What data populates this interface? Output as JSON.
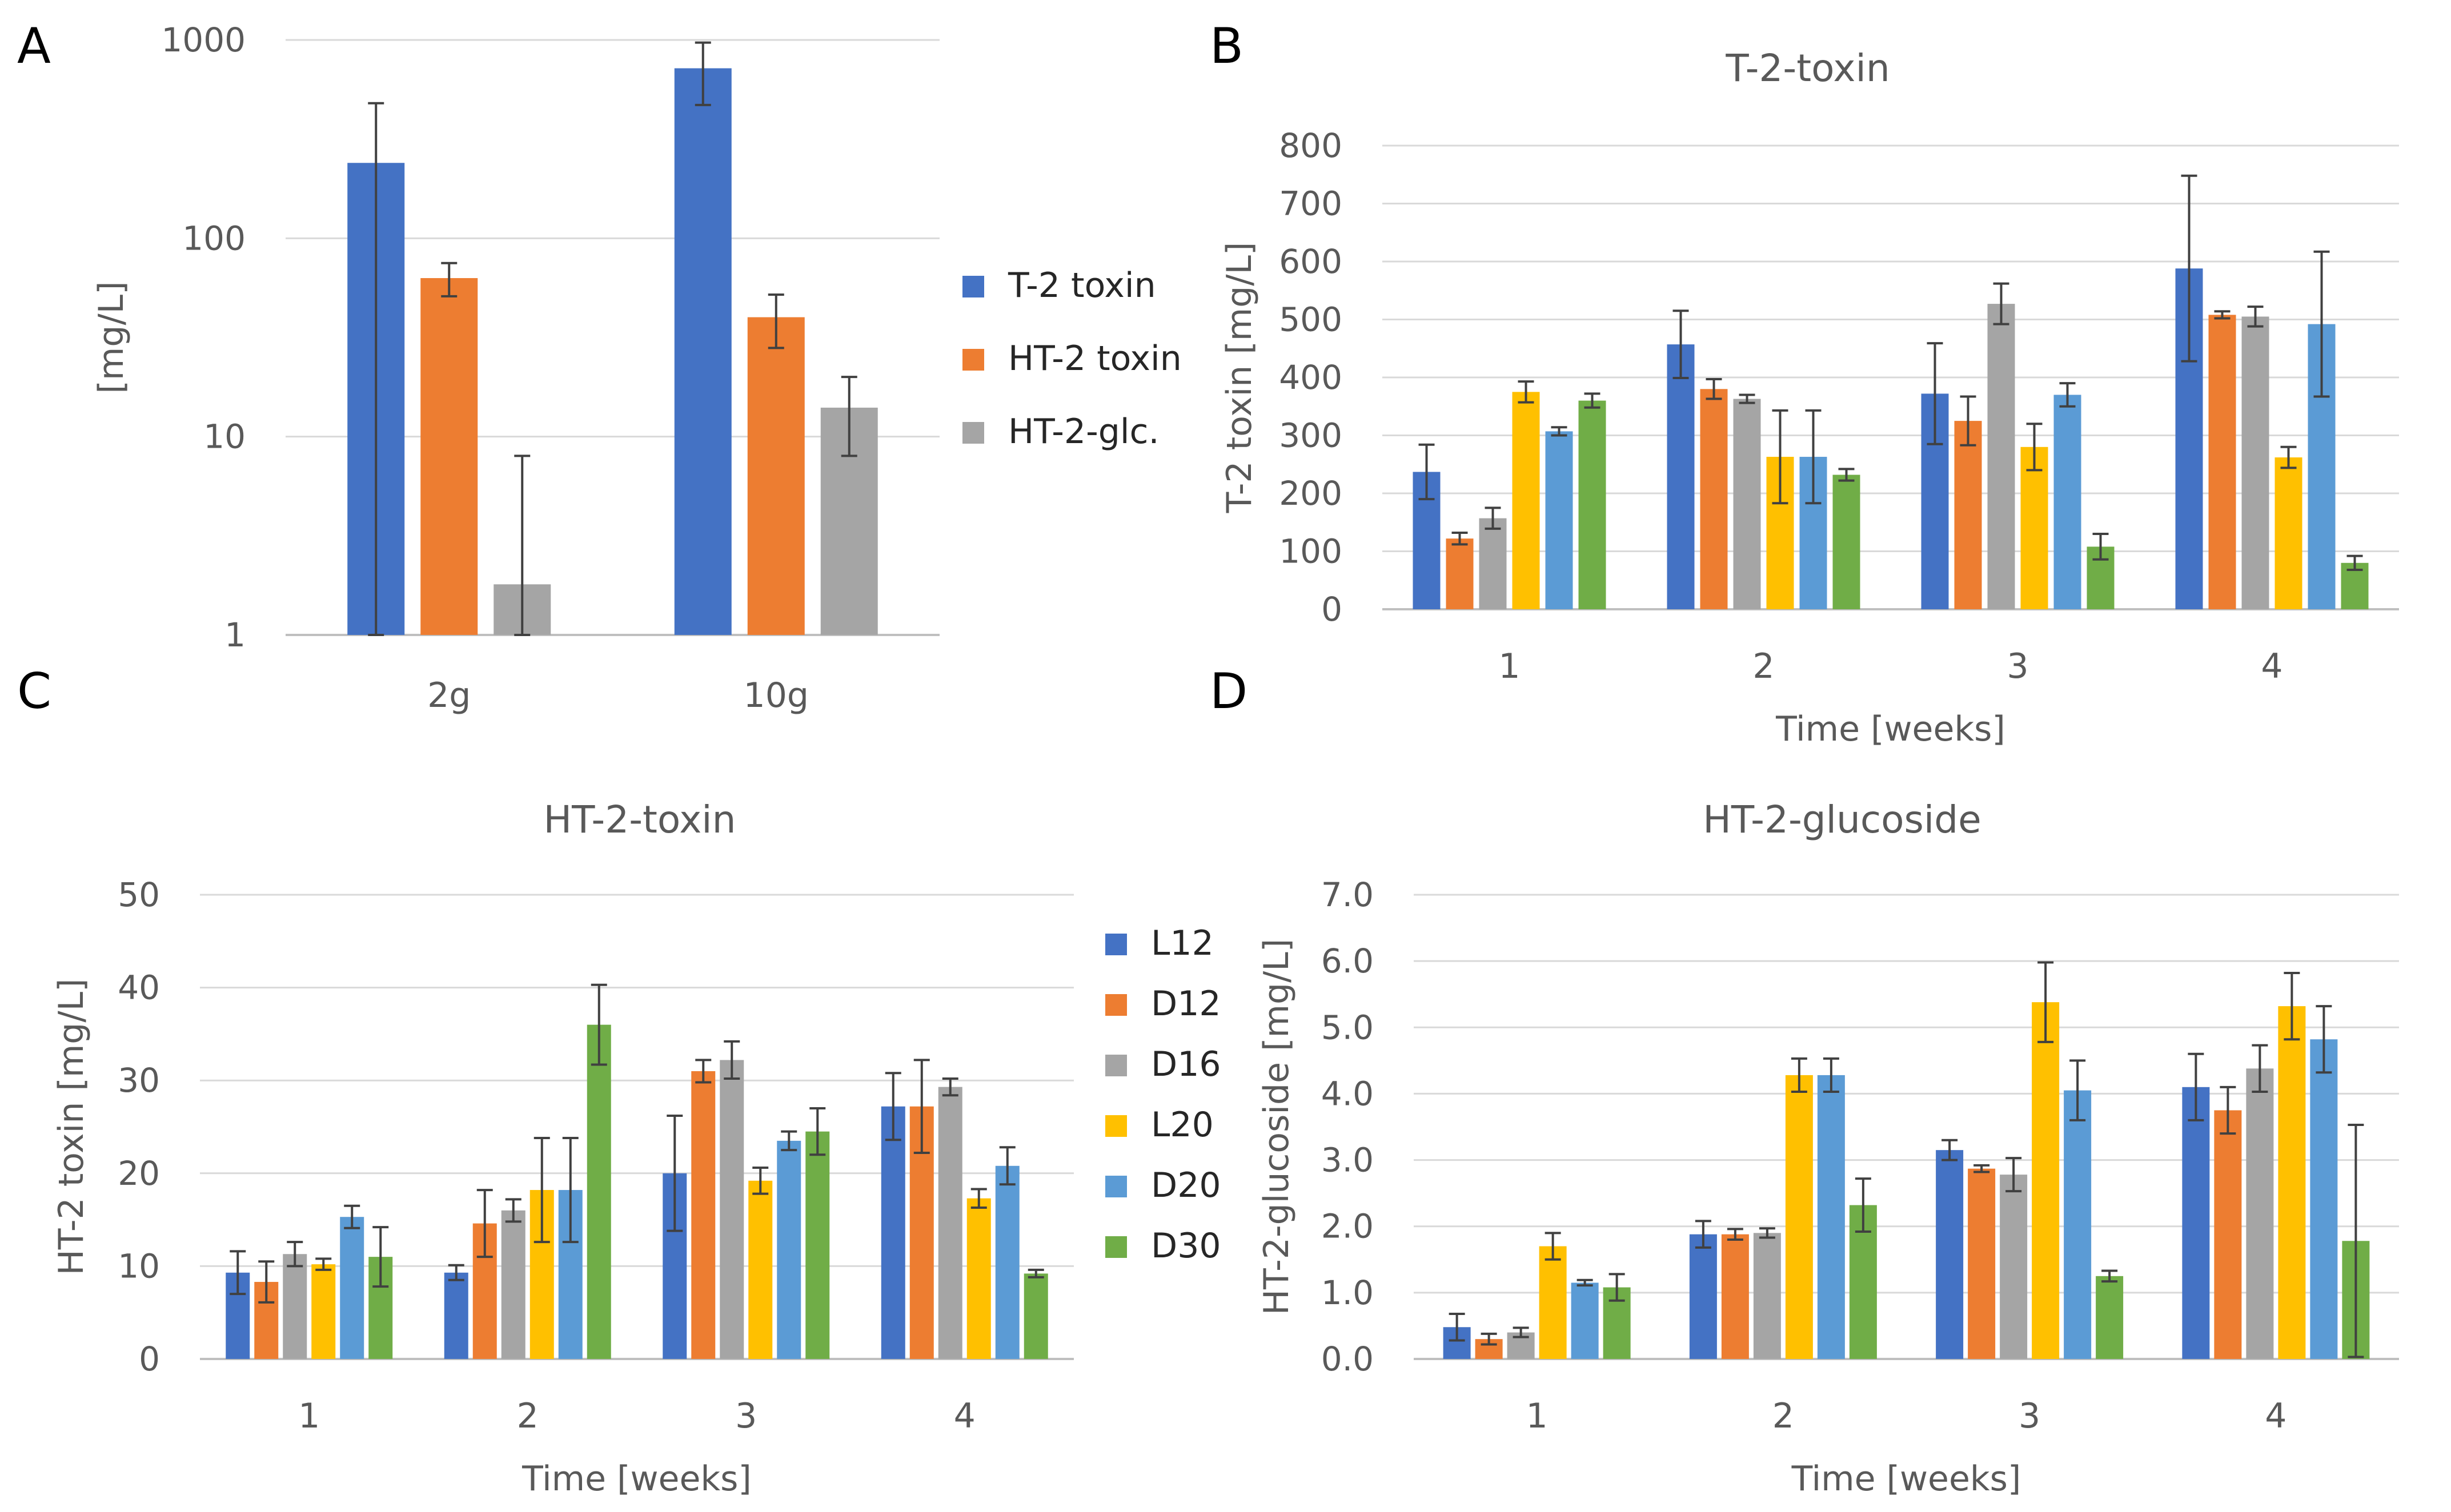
{
  "colors": {
    "L12": "#4472C4",
    "D12": "#ED7D31",
    "D16": "#A5A5A5",
    "L20": "#FFC000",
    "D20": "#5B9BD5",
    "D30": "#70AD47",
    "grid": "#d9d9d9",
    "axis": "#bfbfbf",
    "text": "#595959",
    "panel_label": "#000000",
    "error": "#404040"
  },
  "chart_data": [
    {
      "panel": "A",
      "type": "bar",
      "title": "",
      "xlabel": "",
      "ylabel": "[mg/L]",
      "yscale": "log",
      "ylim": [
        1,
        1000
      ],
      "yticks": [
        1,
        10,
        100,
        1000
      ],
      "ytick_labels": [
        "1",
        "10",
        "100",
        "1000"
      ],
      "categories": [
        "2g",
        "10g"
      ],
      "series": [
        {
          "name": "T-2 toxin",
          "color": "#4472C4",
          "values": [
            240,
            720
          ],
          "errors": [
            240,
            250
          ]
        },
        {
          "name": "HT-2 toxin",
          "color": "#ED7D31",
          "values": [
            63,
            40
          ],
          "errors": [
            12,
            12
          ]
        },
        {
          "name": "HT-2-glc.",
          "color": "#A5A5A5",
          "values": [
            1.8,
            14
          ],
          "errors": [
            6.2,
            6
          ]
        }
      ],
      "legend": "right"
    },
    {
      "panel": "B",
      "type": "bar",
      "title": "T-2-toxin",
      "xlabel": "Time [weeks]",
      "ylabel": "T-2 toxin [mg/L]",
      "ylim": [
        0,
        800
      ],
      "yticks": [
        0,
        100,
        200,
        300,
        400,
        500,
        600,
        700,
        800
      ],
      "ytick_labels": [
        "0",
        "100",
        "200",
        "300",
        "400",
        "500",
        "600",
        "700",
        "800"
      ],
      "categories": [
        "1",
        "2",
        "3",
        "4"
      ],
      "series": [
        {
          "name": "L12",
          "color": "#4472C4",
          "values": [
            237,
            457,
            372,
            588
          ],
          "errors": [
            47,
            58,
            87,
            160
          ]
        },
        {
          "name": "D12",
          "color": "#ED7D31",
          "values": [
            122,
            380,
            325,
            508
          ],
          "errors": [
            10,
            17,
            42,
            6
          ]
        },
        {
          "name": "D16",
          "color": "#A5A5A5",
          "values": [
            157,
            363,
            527,
            505
          ],
          "errors": [
            18,
            7,
            35,
            17
          ]
        },
        {
          "name": "L20",
          "color": "#FFC000",
          "values": [
            375,
            263,
            280,
            262
          ],
          "errors": [
            18,
            80,
            40,
            18
          ]
        },
        {
          "name": "D20",
          "color": "#5B9BD5",
          "values": [
            307,
            263,
            370,
            492
          ],
          "errors": [
            7,
            80,
            20,
            125
          ]
        },
        {
          "name": "D30",
          "color": "#70AD47",
          "values": [
            360,
            232,
            108,
            80
          ],
          "errors": [
            12,
            10,
            22,
            12
          ]
        }
      ]
    },
    {
      "panel": "C",
      "type": "bar",
      "title": "HT-2-toxin",
      "xlabel": "Time [weeks]",
      "ylabel": "HT-2 toxin [mg/L]",
      "ylim": [
        0,
        50
      ],
      "yticks": [
        0,
        10,
        20,
        30,
        40,
        50
      ],
      "ytick_labels": [
        "0",
        "10",
        "20",
        "30",
        "40",
        "50"
      ],
      "categories": [
        "1",
        "2",
        "3",
        "4"
      ],
      "series": [
        {
          "name": "L12",
          "color": "#4472C4",
          "values": [
            9.3,
            9.3,
            20,
            27.2
          ],
          "errors": [
            2.3,
            0.8,
            6.2,
            3.6
          ]
        },
        {
          "name": "D12",
          "color": "#ED7D31",
          "values": [
            8.3,
            14.6,
            31,
            27.2
          ],
          "errors": [
            2.2,
            3.6,
            1.2,
            5
          ]
        },
        {
          "name": "D16",
          "color": "#A5A5A5",
          "values": [
            11.3,
            16,
            32.2,
            29.3
          ],
          "errors": [
            1.3,
            1.2,
            2,
            0.9
          ]
        },
        {
          "name": "L20",
          "color": "#FFC000",
          "values": [
            10.2,
            18.2,
            19.2,
            17.3
          ],
          "errors": [
            0.6,
            5.6,
            1.4,
            1
          ]
        },
        {
          "name": "D20",
          "color": "#5B9BD5",
          "values": [
            15.3,
            18.2,
            23.5,
            20.8
          ],
          "errors": [
            1.2,
            5.6,
            1,
            2
          ]
        },
        {
          "name": "D30",
          "color": "#70AD47",
          "values": [
            11,
            36,
            24.5,
            9.2
          ],
          "errors": [
            3.2,
            4.3,
            2.5,
            0.4
          ]
        }
      ],
      "legend": "right"
    },
    {
      "panel": "D",
      "type": "bar",
      "title": "HT-2-glucoside",
      "xlabel": "Time [weeks]",
      "ylabel": "HT-2-glucoside [mg/L]",
      "ylim": [
        0,
        7
      ],
      "yticks": [
        0,
        1,
        2,
        3,
        4,
        5,
        6,
        7
      ],
      "ytick_labels": [
        "0.0",
        "1.0",
        "2.0",
        "3.0",
        "4.0",
        "5.0",
        "6.0",
        "7.0"
      ],
      "categories": [
        "1",
        "2",
        "3",
        "4"
      ],
      "series": [
        {
          "name": "L12",
          "color": "#4472C4",
          "values": [
            0.48,
            1.88,
            3.15,
            4.1
          ],
          "errors": [
            0.2,
            0.2,
            0.15,
            0.5
          ]
        },
        {
          "name": "D12",
          "color": "#ED7D31",
          "values": [
            0.3,
            1.88,
            2.87,
            3.75
          ],
          "errors": [
            0.08,
            0.08,
            0.05,
            0.35
          ]
        },
        {
          "name": "D16",
          "color": "#A5A5A5",
          "values": [
            0.4,
            1.9,
            2.78,
            4.38
          ],
          "errors": [
            0.07,
            0.07,
            0.25,
            0.35
          ]
        },
        {
          "name": "L20",
          "color": "#FFC000",
          "values": [
            1.7,
            4.28,
            5.38,
            5.32
          ],
          "errors": [
            0.2,
            0.25,
            0.6,
            0.5
          ]
        },
        {
          "name": "D20",
          "color": "#5B9BD5",
          "values": [
            1.15,
            4.28,
            4.05,
            4.82
          ],
          "errors": [
            0.04,
            0.25,
            0.45,
            0.5
          ]
        },
        {
          "name": "D30",
          "color": "#70AD47",
          "values": [
            1.08,
            2.32,
            1.25,
            1.78
          ],
          "errors": [
            0.2,
            0.4,
            0.08,
            1.75
          ]
        }
      ]
    }
  ]
}
